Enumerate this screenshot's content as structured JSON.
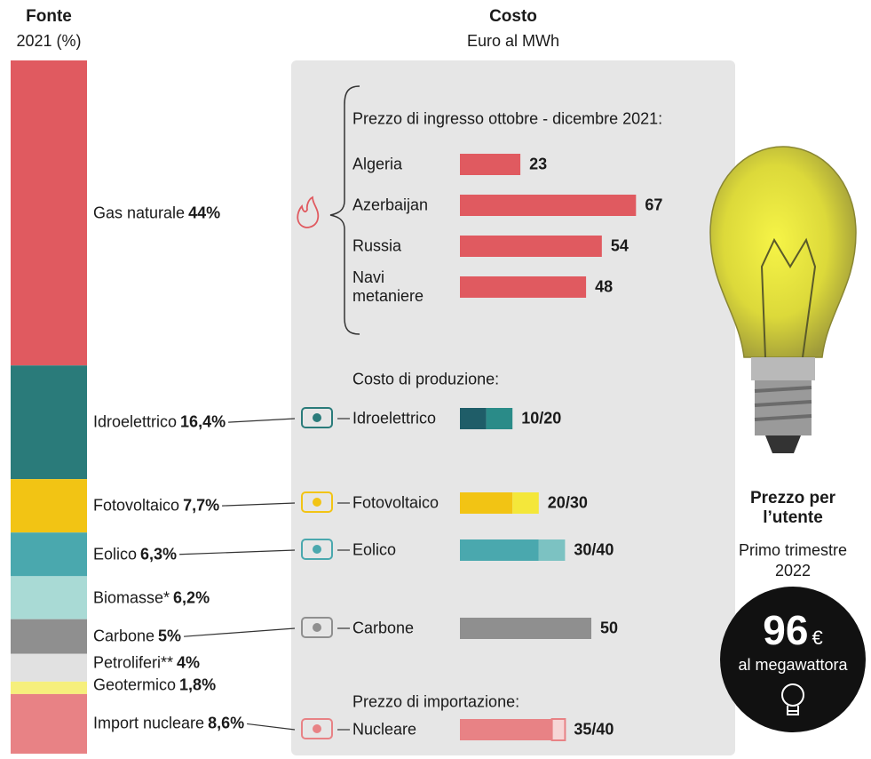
{
  "chart_data": [
    {
      "type": "stacked-column",
      "title": "Fonte",
      "subtitle": "2021 (%)",
      "categories": [
        "Gas naturale",
        "Idroelettrico",
        "Fotovoltaico",
        "Eolico",
        "Biomasse*",
        "Carbone",
        "Petroliferi**",
        "Geotermico",
        "Import nucleare"
      ],
      "values": [
        44,
        16.4,
        7.7,
        6.3,
        6.2,
        5,
        4,
        1.8,
        8.6
      ],
      "value_labels": [
        "44%",
        "16,4%",
        "7,7%",
        "6,3%",
        "6,2%",
        "5%",
        "4%",
        "1,8%",
        "8,6%"
      ],
      "colors": [
        "#e05a60",
        "#2a7b7a",
        "#f2c414",
        "#4aa8ae",
        "#a9dad5",
        "#8f8f8f",
        "#e1e1e1",
        "#f6ef7c",
        "#e88285"
      ]
    },
    {
      "type": "bar",
      "title": "Costo",
      "subtitle": "Euro al MWh",
      "sections": [
        {
          "title": "Prezzo di ingresso ottobre - dicembre 2021:",
          "categories": [
            "Algeria",
            "Azerbaijan",
            "Russia",
            "Navi metaniere"
          ],
          "values": [
            23,
            67,
            54,
            48
          ],
          "values_to": [
            null,
            null,
            null,
            null
          ],
          "value_labels": [
            "23",
            "67",
            "54",
            "48"
          ],
          "colors": [
            "#e05a60",
            "#e05a60",
            "#e05a60",
            "#e05a60"
          ],
          "colors_to": [
            null,
            null,
            null,
            null
          ]
        },
        {
          "title": "Costo di produzione:",
          "categories": [
            "Idroelettrico",
            "Fotovoltaico",
            "Eolico",
            "Carbone"
          ],
          "values": [
            10,
            20,
            30,
            50
          ],
          "values_to": [
            20,
            30,
            40,
            null
          ],
          "value_labels": [
            "10/20",
            "20/30",
            "30/40",
            "50"
          ],
          "colors": [
            "#1f5d68",
            "#f2c414",
            "#4aa8ae",
            "#8f8f8f"
          ],
          "colors_to": [
            "#2a8b88",
            "#f4e73a",
            "#7cc2c2",
            null
          ]
        },
        {
          "title": "Prezzo di importazione:",
          "categories": [
            "Nucleare"
          ],
          "values": [
            35
          ],
          "values_to": [
            40
          ],
          "value_labels": [
            "35/40"
          ],
          "colors": [
            "#e88285"
          ],
          "colors_to": [
            "#f6d6d6"
          ]
        }
      ]
    }
  ],
  "callout": {
    "title": "Prezzo per l’utente",
    "subtitle": "Primo trimestre 2022",
    "value": 96,
    "unit": "€",
    "caption": "al megawattora"
  }
}
